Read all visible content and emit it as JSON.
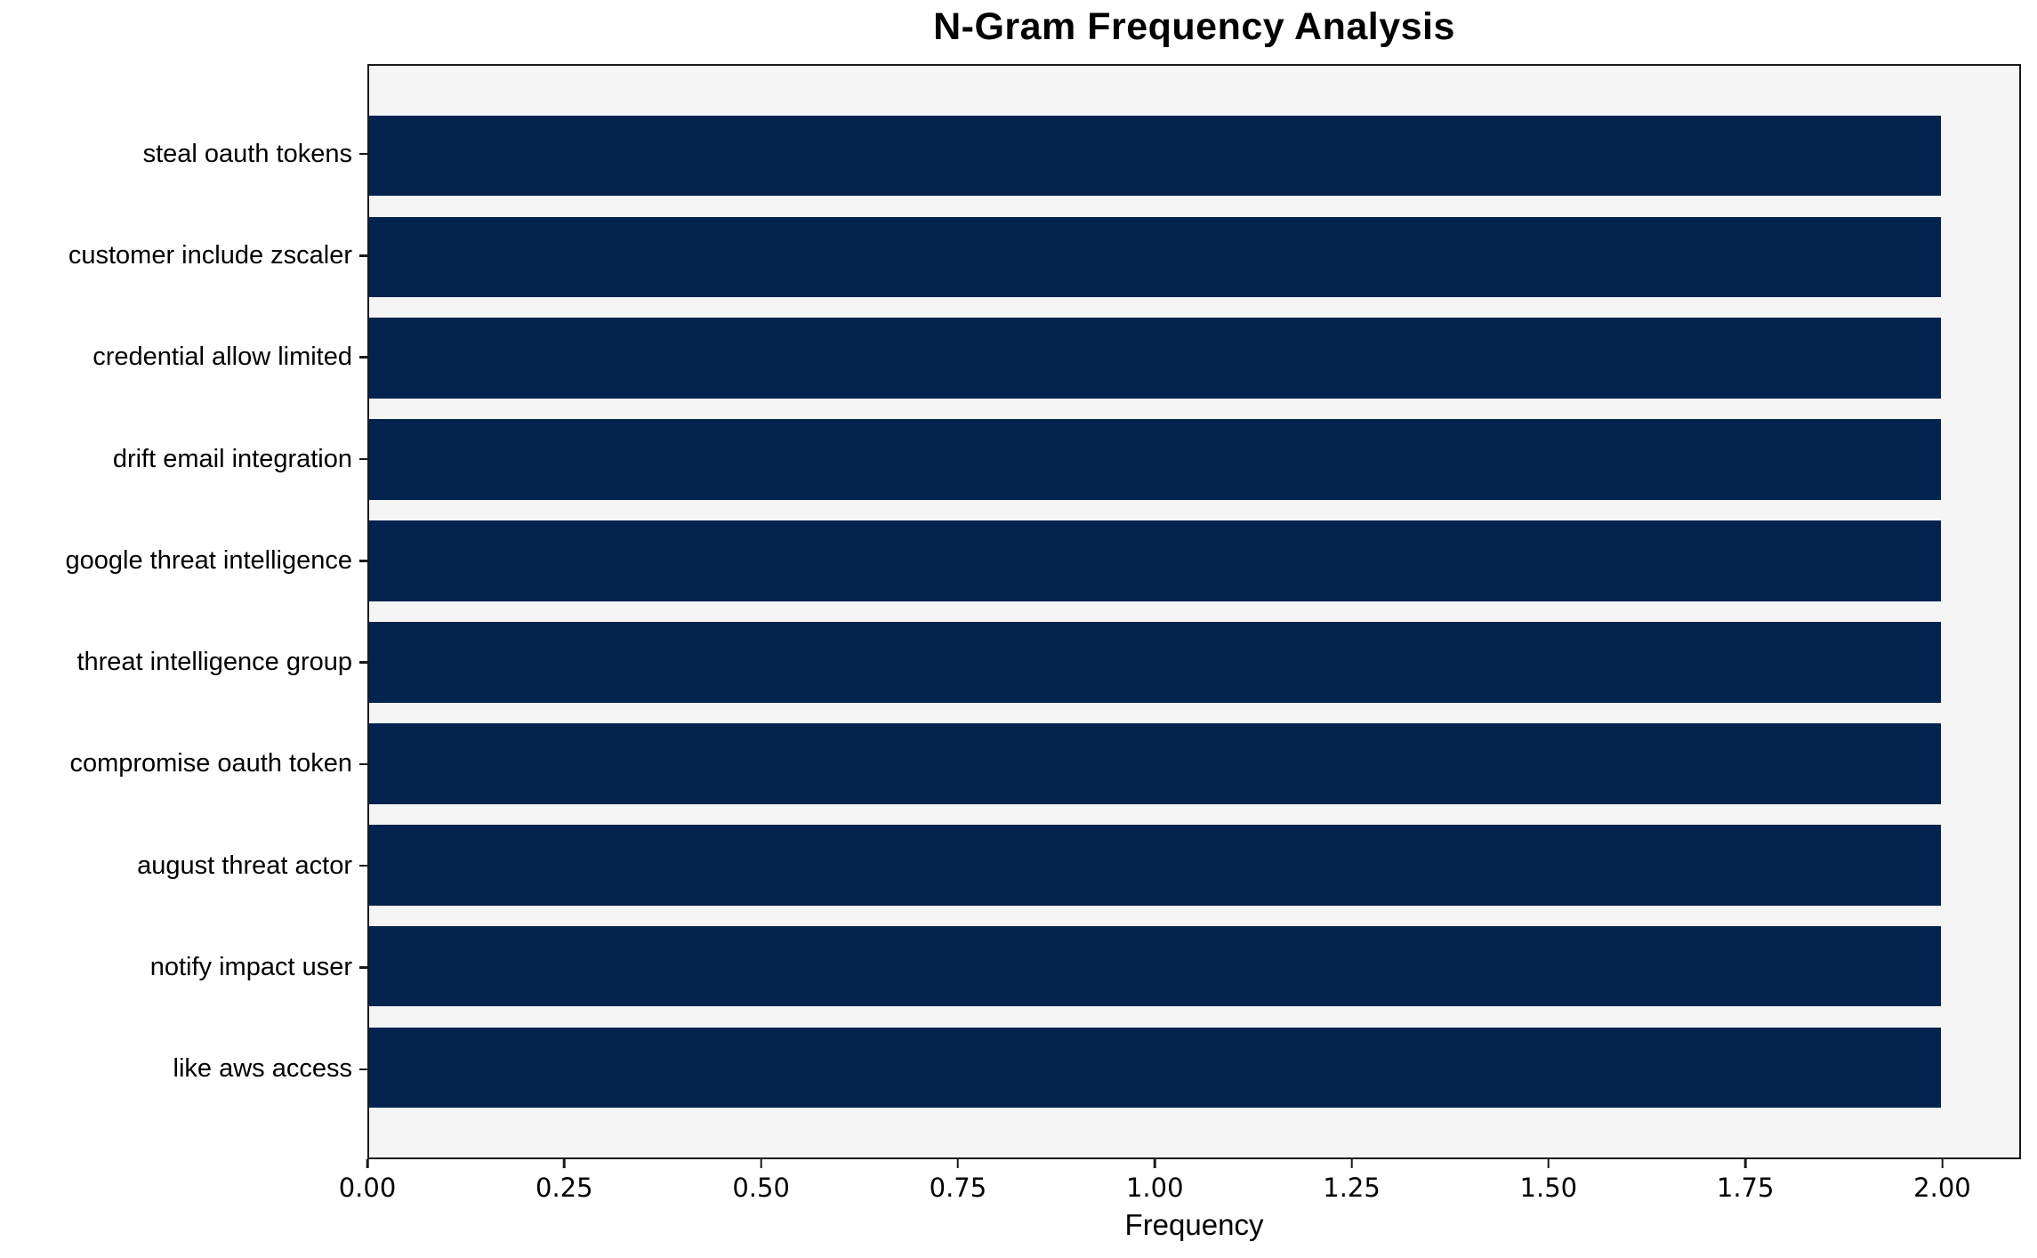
{
  "chart_data": {
    "type": "bar",
    "orientation": "horizontal",
    "title": "N-Gram Frequency Analysis",
    "xlabel": "Frequency",
    "ylabel": "",
    "categories": [
      "steal oauth tokens",
      "customer include zscaler",
      "credential allow limited",
      "drift email integration",
      "google threat intelligence",
      "threat intelligence group",
      "compromise oauth token",
      "august threat actor",
      "notify impact user",
      "like aws access"
    ],
    "values": [
      2,
      2,
      2,
      2,
      2,
      2,
      2,
      2,
      2,
      2
    ],
    "xlim": [
      0,
      2.1
    ],
    "xticks": [
      0,
      0.25,
      0.5,
      0.75,
      1.0,
      1.25,
      1.5,
      1.75,
      2.0
    ],
    "xtick_labels": [
      "0.00",
      "0.25",
      "0.50",
      "0.75",
      "1.00",
      "1.25",
      "1.50",
      "1.75",
      "2.00"
    ],
    "grid": false,
    "legend": null,
    "colors": {
      "bar": "#02234D",
      "plot_background": "#F5F5F6",
      "figure_background": "#FFFFFF",
      "spine": "#1A1A1A",
      "text": "#000000"
    }
  }
}
